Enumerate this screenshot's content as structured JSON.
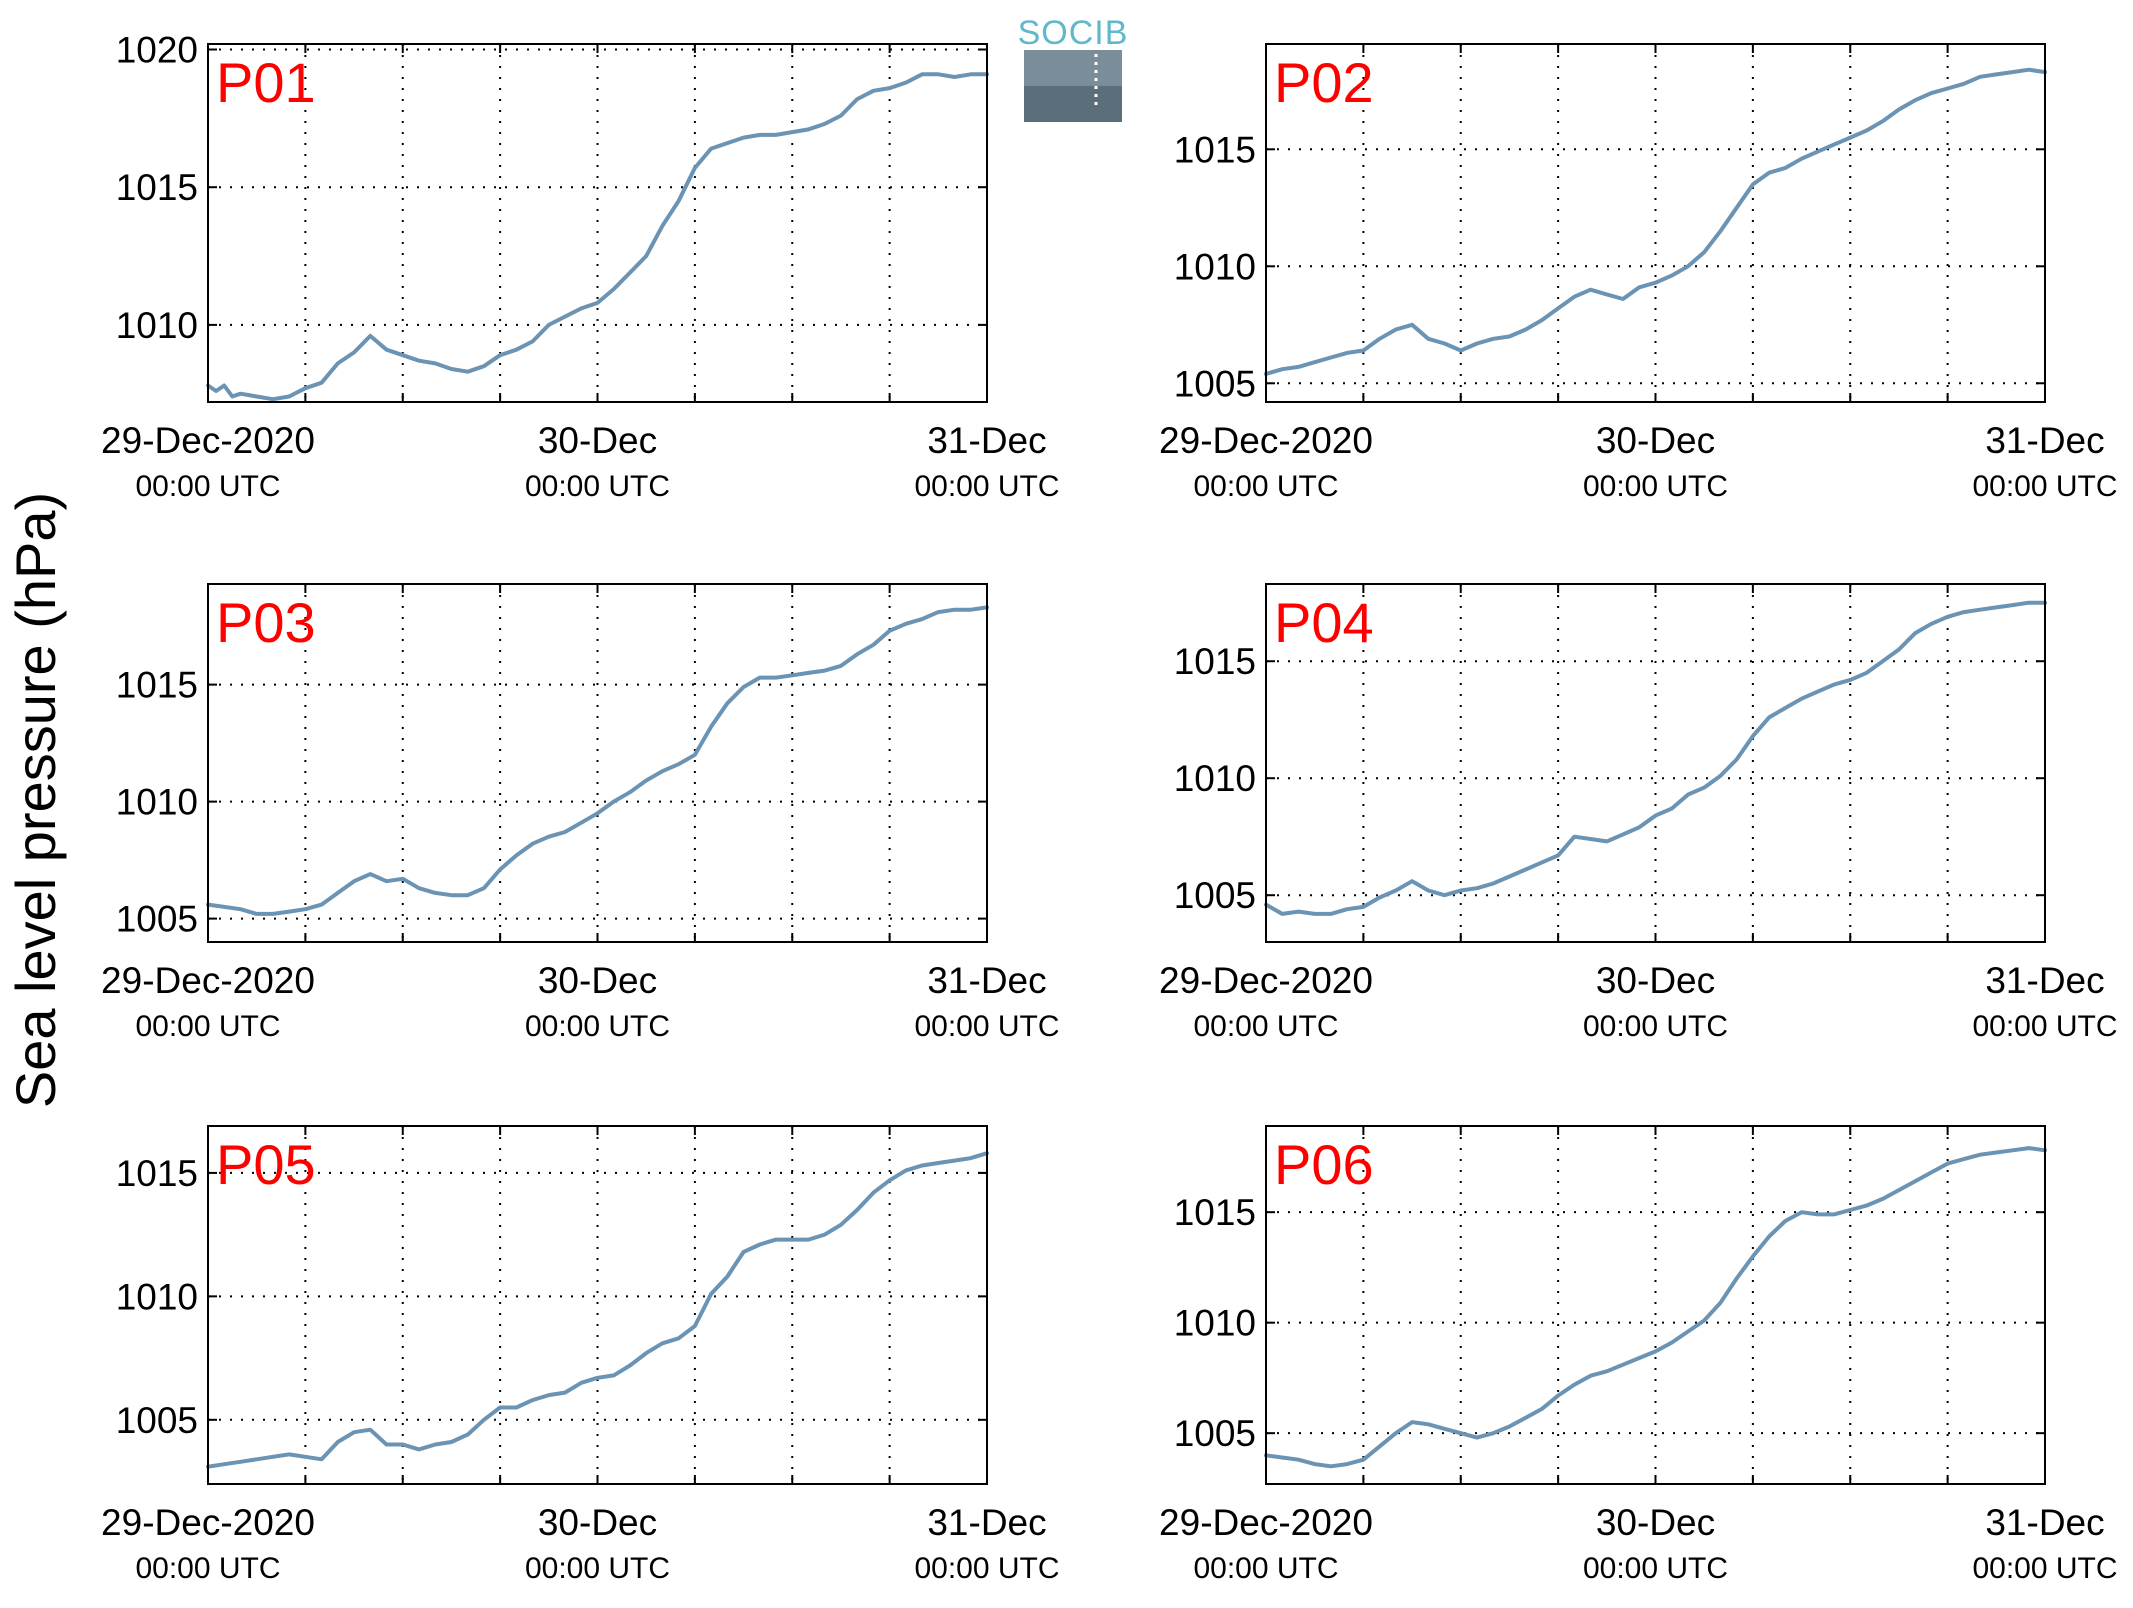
{
  "ylabel": "Sea level pressure (hPa)",
  "logo": {
    "text": "SOCIB",
    "color": "#5fb8cc"
  },
  "colors": {
    "line": "#6a93b4",
    "panel_label": "#ff0000",
    "grid": "#000000"
  },
  "x_ticks": [
    {
      "date": "29-Dec-2020",
      "time": "00:00 UTC"
    },
    {
      "date": "30-Dec",
      "time": "00:00 UTC"
    },
    {
      "date": "31-Dec",
      "time": "00:00 UTC"
    }
  ],
  "chart_data": [
    {
      "type": "line",
      "label": "P01",
      "ylim": [
        1007.2,
        1020.2
      ],
      "yticks": [
        1010,
        1015,
        1020
      ],
      "xlim": [
        0,
        48
      ],
      "grid": true,
      "series": [
        {
          "x": [
            0,
            0.5,
            1,
            1.5,
            2,
            3,
            4,
            5,
            6,
            7,
            8,
            9,
            10,
            11,
            12,
            13,
            14,
            15,
            16,
            17,
            18,
            19,
            20,
            21,
            22,
            23,
            24,
            25,
            26,
            27,
            28,
            29,
            30,
            31,
            32,
            33,
            34,
            35,
            36,
            37,
            38,
            39,
            40,
            41,
            42,
            43,
            44,
            45,
            46,
            47,
            48
          ],
          "values": [
            1007.8,
            1007.6,
            1007.8,
            1007.4,
            1007.5,
            1007.4,
            1007.3,
            1007.4,
            1007.7,
            1007.9,
            1008.6,
            1009.0,
            1009.6,
            1009.1,
            1008.9,
            1008.7,
            1008.6,
            1008.4,
            1008.3,
            1008.5,
            1008.9,
            1009.1,
            1009.4,
            1010.0,
            1010.3,
            1010.6,
            1010.8,
            1011.3,
            1011.9,
            1012.5,
            1013.6,
            1014.5,
            1015.7,
            1016.4,
            1016.6,
            1016.8,
            1016.9,
            1016.9,
            1017.0,
            1017.1,
            1017.3,
            1017.6,
            1018.2,
            1018.5,
            1018.6,
            1018.8,
            1019.1,
            1019.1,
            1019.0,
            1019.1,
            1019.1
          ]
        }
      ]
    },
    {
      "type": "line",
      "label": "P02",
      "ylim": [
        1004.2,
        1019.5
      ],
      "yticks": [
        1005,
        1010,
        1015
      ],
      "xlim": [
        0,
        48
      ],
      "grid": true,
      "series": [
        {
          "x": [
            0,
            1,
            2,
            3,
            4,
            5,
            6,
            7,
            8,
            9,
            10,
            11,
            12,
            13,
            14,
            15,
            16,
            17,
            18,
            19,
            20,
            21,
            22,
            23,
            24,
            25,
            26,
            27,
            28,
            29,
            30,
            31,
            32,
            33,
            34,
            35,
            36,
            37,
            38,
            39,
            40,
            41,
            42,
            43,
            44,
            45,
            46,
            47,
            48
          ],
          "values": [
            1005.4,
            1005.6,
            1005.7,
            1005.9,
            1006.1,
            1006.3,
            1006.4,
            1006.9,
            1007.3,
            1007.5,
            1006.9,
            1006.7,
            1006.4,
            1006.7,
            1006.9,
            1007.0,
            1007.3,
            1007.7,
            1008.2,
            1008.7,
            1009.0,
            1008.8,
            1008.6,
            1009.1,
            1009.3,
            1009.6,
            1010.0,
            1010.6,
            1011.5,
            1012.5,
            1013.5,
            1014.0,
            1014.2,
            1014.6,
            1014.9,
            1015.2,
            1015.5,
            1015.8,
            1016.2,
            1016.7,
            1017.1,
            1017.4,
            1017.6,
            1017.8,
            1018.1,
            1018.2,
            1018.3,
            1018.4,
            1018.3
          ]
        }
      ]
    },
    {
      "type": "line",
      "label": "P03",
      "ylim": [
        1004.0,
        1019.3
      ],
      "yticks": [
        1005,
        1010,
        1015
      ],
      "xlim": [
        0,
        48
      ],
      "grid": true,
      "series": [
        {
          "x": [
            0,
            1,
            2,
            3,
            4,
            5,
            6,
            7,
            8,
            9,
            10,
            11,
            12,
            13,
            14,
            15,
            16,
            17,
            18,
            19,
            20,
            21,
            22,
            23,
            24,
            25,
            26,
            27,
            28,
            29,
            30,
            31,
            32,
            33,
            34,
            35,
            36,
            37,
            38,
            39,
            40,
            41,
            42,
            43,
            44,
            45,
            46,
            47,
            48
          ],
          "values": [
            1005.6,
            1005.5,
            1005.4,
            1005.2,
            1005.2,
            1005.3,
            1005.4,
            1005.6,
            1006.1,
            1006.6,
            1006.9,
            1006.6,
            1006.7,
            1006.3,
            1006.1,
            1006.0,
            1006.0,
            1006.3,
            1007.1,
            1007.7,
            1008.2,
            1008.5,
            1008.7,
            1009.1,
            1009.5,
            1010.0,
            1010.4,
            1010.9,
            1011.3,
            1011.6,
            1012.0,
            1013.2,
            1014.2,
            1014.9,
            1015.3,
            1015.3,
            1015.4,
            1015.5,
            1015.6,
            1015.8,
            1016.3,
            1016.7,
            1017.3,
            1017.6,
            1017.8,
            1018.1,
            1018.2,
            1018.2,
            1018.3
          ]
        }
      ]
    },
    {
      "type": "line",
      "label": "P04",
      "ylim": [
        1003.0,
        1018.3
      ],
      "yticks": [
        1005,
        1010,
        1015
      ],
      "xlim": [
        0,
        48
      ],
      "grid": true,
      "series": [
        {
          "x": [
            0,
            1,
            2,
            3,
            4,
            5,
            6,
            7,
            8,
            9,
            10,
            11,
            12,
            13,
            14,
            15,
            16,
            17,
            18,
            19,
            20,
            21,
            22,
            23,
            24,
            25,
            26,
            27,
            28,
            29,
            30,
            31,
            32,
            33,
            34,
            35,
            36,
            37,
            38,
            39,
            40,
            41,
            42,
            43,
            44,
            45,
            46,
            47,
            48
          ],
          "values": [
            1004.6,
            1004.2,
            1004.3,
            1004.2,
            1004.2,
            1004.4,
            1004.5,
            1004.9,
            1005.2,
            1005.6,
            1005.2,
            1005.0,
            1005.2,
            1005.3,
            1005.5,
            1005.8,
            1006.1,
            1006.4,
            1006.7,
            1007.5,
            1007.4,
            1007.3,
            1007.6,
            1007.9,
            1008.4,
            1008.7,
            1009.3,
            1009.6,
            1010.1,
            1010.8,
            1011.8,
            1012.6,
            1013.0,
            1013.4,
            1013.7,
            1014.0,
            1014.2,
            1014.5,
            1015.0,
            1015.5,
            1016.2,
            1016.6,
            1016.9,
            1017.1,
            1017.2,
            1017.3,
            1017.4,
            1017.5,
            1017.5
          ]
        }
      ]
    },
    {
      "type": "line",
      "label": "P05",
      "ylim": [
        1002.4,
        1016.9
      ],
      "yticks": [
        1005,
        1010,
        1015
      ],
      "xlim": [
        0,
        48
      ],
      "grid": true,
      "series": [
        {
          "x": [
            0,
            1,
            2,
            3,
            4,
            5,
            6,
            7,
            8,
            9,
            10,
            11,
            12,
            13,
            14,
            15,
            16,
            17,
            18,
            19,
            20,
            21,
            22,
            23,
            24,
            25,
            26,
            27,
            28,
            29,
            30,
            31,
            32,
            33,
            34,
            35,
            36,
            37,
            38,
            39,
            40,
            41,
            42,
            43,
            44,
            45,
            46,
            47,
            48
          ],
          "values": [
            1003.1,
            1003.2,
            1003.3,
            1003.4,
            1003.5,
            1003.6,
            1003.5,
            1003.4,
            1004.1,
            1004.5,
            1004.6,
            1004.0,
            1004.0,
            1003.8,
            1004.0,
            1004.1,
            1004.4,
            1005.0,
            1005.5,
            1005.5,
            1005.8,
            1006.0,
            1006.1,
            1006.5,
            1006.7,
            1006.8,
            1007.2,
            1007.7,
            1008.1,
            1008.3,
            1008.8,
            1010.1,
            1010.8,
            1011.8,
            1012.1,
            1012.3,
            1012.3,
            1012.3,
            1012.5,
            1012.9,
            1013.5,
            1014.2,
            1014.7,
            1015.1,
            1015.3,
            1015.4,
            1015.5,
            1015.6,
            1015.8
          ]
        }
      ]
    },
    {
      "type": "line",
      "label": "P06",
      "ylim": [
        1002.7,
        1018.9
      ],
      "yticks": [
        1005,
        1010,
        1015
      ],
      "xlim": [
        0,
        48
      ],
      "grid": true,
      "series": [
        {
          "x": [
            0,
            1,
            2,
            3,
            4,
            5,
            6,
            7,
            8,
            9,
            10,
            11,
            12,
            13,
            14,
            15,
            16,
            17,
            18,
            19,
            20,
            21,
            22,
            23,
            24,
            25,
            26,
            27,
            28,
            29,
            30,
            31,
            32,
            33,
            34,
            35,
            36,
            37,
            38,
            39,
            40,
            41,
            42,
            43,
            44,
            45,
            46,
            47,
            48
          ],
          "values": [
            1004.0,
            1003.9,
            1003.8,
            1003.6,
            1003.5,
            1003.6,
            1003.8,
            1004.4,
            1005.0,
            1005.5,
            1005.4,
            1005.2,
            1005.0,
            1004.8,
            1005.0,
            1005.3,
            1005.7,
            1006.1,
            1006.7,
            1007.2,
            1007.6,
            1007.8,
            1008.1,
            1008.4,
            1008.7,
            1009.1,
            1009.6,
            1010.1,
            1010.9,
            1012.0,
            1013.0,
            1013.9,
            1014.6,
            1015.0,
            1014.9,
            1014.9,
            1015.1,
            1015.3,
            1015.6,
            1016.0,
            1016.4,
            1016.8,
            1017.2,
            1017.4,
            1017.6,
            1017.7,
            1017.8,
            1017.9,
            1017.8
          ]
        }
      ]
    }
  ]
}
